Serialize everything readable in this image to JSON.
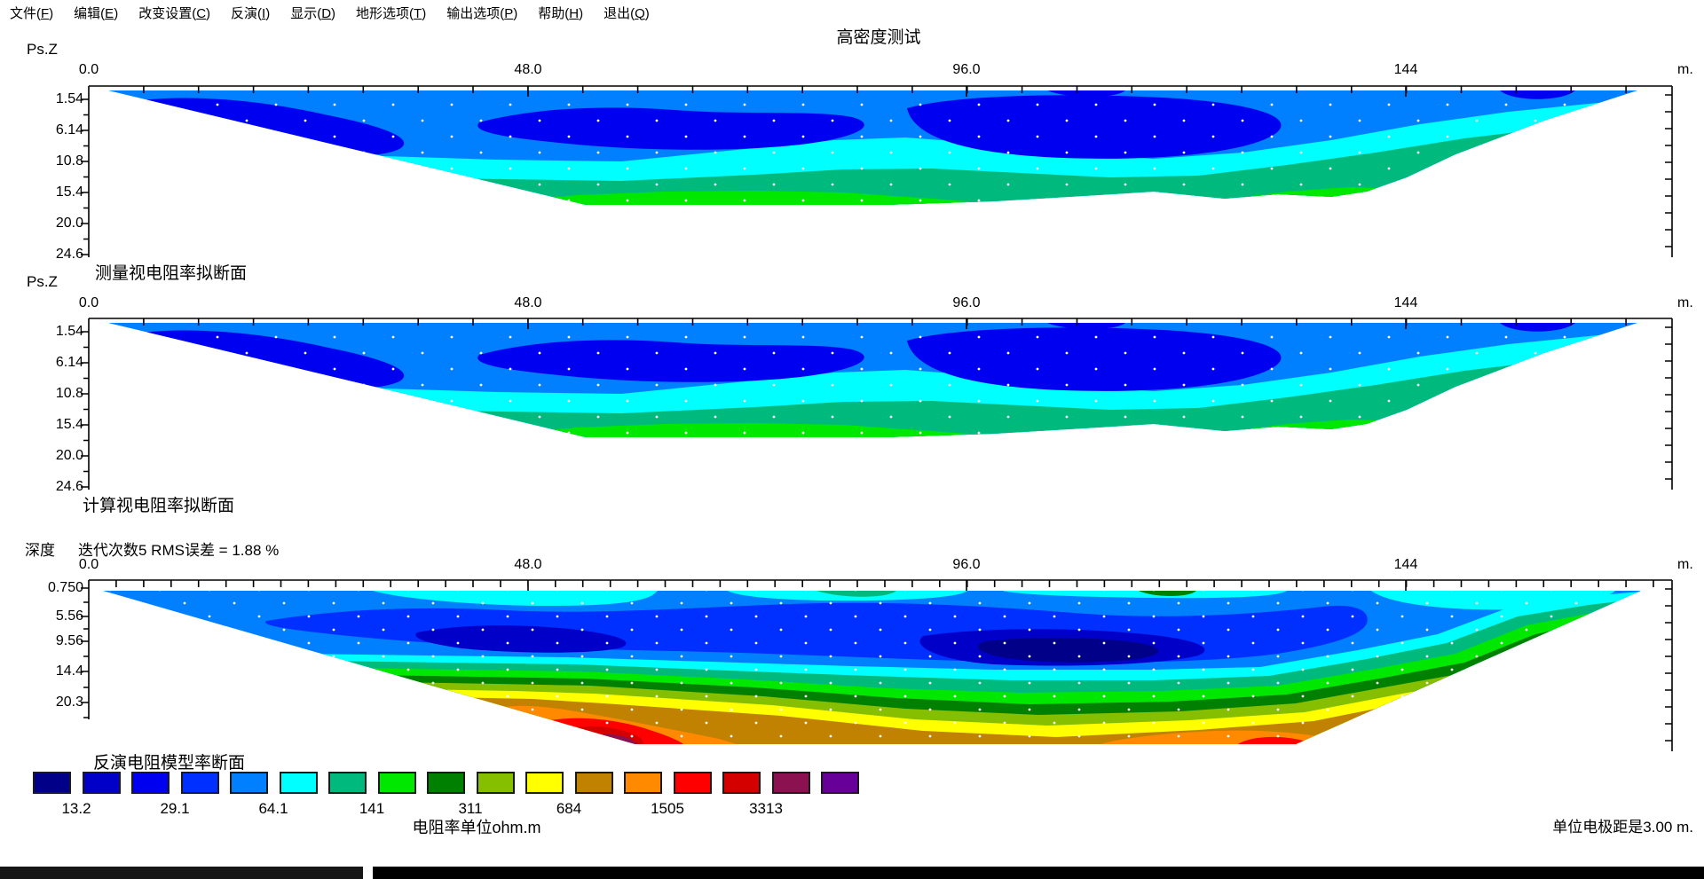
{
  "menu": {
    "items": [
      {
        "label": "文件",
        "key": "F"
      },
      {
        "label": "编辑",
        "key": "E"
      },
      {
        "label": "改变设置",
        "key": "C"
      },
      {
        "label": "反演",
        "key": "I"
      },
      {
        "label": "显示",
        "key": "D"
      },
      {
        "label": "地形选项",
        "key": "T"
      },
      {
        "label": "输出选项",
        "key": "P"
      },
      {
        "label": "帮助",
        "key": "H"
      },
      {
        "label": "退出",
        "key": "Q"
      }
    ]
  },
  "title": "高密度测试",
  "plots": [
    {
      "axis_title": "Ps.Z",
      "x_ticks": [
        "0.0",
        "48.0",
        "96.0",
        "144"
      ],
      "x_unit": "m.",
      "y_ticks": [
        "1.54",
        "6.14",
        "10.8",
        "15.4",
        "20.0",
        "24.6"
      ],
      "caption": "测量视电阻率拟断面"
    },
    {
      "axis_title": "Ps.Z",
      "x_ticks": [
        "0.0",
        "48.0",
        "96.0",
        "144"
      ],
      "x_unit": "m.",
      "y_ticks": [
        "1.54",
        "6.14",
        "10.8",
        "15.4",
        "20.0",
        "24.6"
      ],
      "caption": "计算视电阻率拟断面"
    },
    {
      "axis_title": "深度",
      "info": "迭代次数5 RMS误差 = 1.88 %",
      "x_ticks": [
        "0.0",
        "48.0",
        "96.0",
        "144"
      ],
      "x_unit": "m.",
      "y_ticks": [
        "0.750",
        "5.56",
        "9.56",
        "14.4",
        "20.3"
      ],
      "caption": "反演电阻模型率断面"
    }
  ],
  "palette": [
    "#000089",
    "#0000C8",
    "#0000F0",
    "#0030FF",
    "#0080FF",
    "#00FFFF",
    "#00BA7D",
    "#00E800",
    "#008000",
    "#86BE00",
    "#FFFF00",
    "#C08200",
    "#FF8A00",
    "#FF0000",
    "#D40000",
    "#8B1150",
    "#660099"
  ],
  "colorbar": {
    "labels": [
      "13.2",
      "29.1",
      "64.1",
      "141",
      "311",
      "684",
      "1505",
      "3313"
    ],
    "unit_text": "电阻率单位ohm.m"
  },
  "footer": {
    "electrode_note": "单位电极距是3.00 m."
  },
  "chart_data": [
    {
      "type": "heatmap",
      "title": "测量视电阻率拟断面",
      "x_ticks": [
        0,
        48,
        96,
        144
      ],
      "x_unit": "m",
      "pseudo_depth_levels": [
        1.54,
        6.14,
        10.8,
        15.4,
        20.0,
        24.6
      ],
      "color_scale_values": [
        13.2,
        29.1,
        64.1,
        141,
        311,
        684,
        1505,
        3313
      ],
      "value_unit": "ohm.m",
      "description": "Measured apparent resistivity pseudosection: low-resistivity blues (13-64 ohm.m) in upper levels with dark-blue pockets, cyan band below, teal (~141-311) mid band, bright green (~311) at deepest central levels"
    },
    {
      "type": "heatmap",
      "title": "计算视电阻率拟断面",
      "x_ticks": [
        0,
        48,
        96,
        144
      ],
      "x_unit": "m",
      "pseudo_depth_levels": [
        1.54,
        6.14,
        10.8,
        15.4,
        20.0,
        24.6
      ],
      "color_scale_values": [
        13.2,
        29.1,
        64.1,
        141,
        311,
        684,
        1505,
        3313
      ],
      "value_unit": "ohm.m",
      "description": "Calculated apparent resistivity pseudosection, visually nearly identical to the measured section"
    },
    {
      "type": "heatmap",
      "title": "反演电阻模型率断面",
      "x_ticks": [
        0,
        48,
        96,
        144
      ],
      "x_unit": "m",
      "depth_levels": [
        0.75,
        5.56,
        9.56,
        14.4,
        20.3
      ],
      "iterations": 5,
      "rms_error_percent": 1.88,
      "electrode_spacing_m": 3.0,
      "color_scale_values": [
        13.2,
        29.1,
        64.1,
        141,
        311,
        684,
        1505,
        3313
      ],
      "value_unit": "ohm.m",
      "description": "Inverted resistivity model: conductive (<30 ohm.m) navy-blue body in upper middle, rainbow-banded high-resistivity anomaly (red/purple core >3000 ohm.m) near x=48-60 m at depth ~20 m, second warm zone near x=130-140 m, yellow/goldenrod floor between"
    }
  ]
}
